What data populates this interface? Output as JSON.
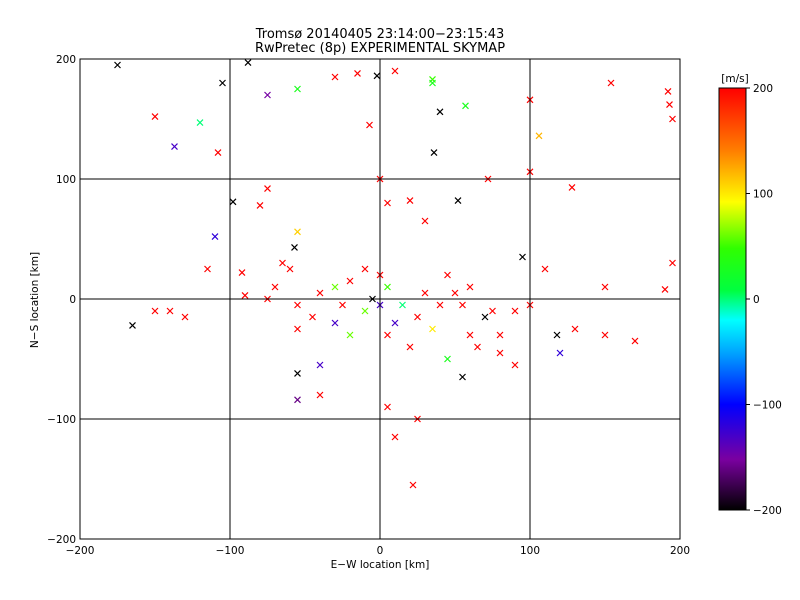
{
  "chart_data": {
    "type": "scatter",
    "title": "Tromsø 20140405 23:14:00−23:15:43",
    "subtitle": "RwPretec (8p) EXPERIMENTAL SKYMAP",
    "xlabel": "E−W location [km]",
    "ylabel": "N−S location [km]",
    "xlim": [
      -200,
      200
    ],
    "ylim": [
      -200,
      200
    ],
    "x_ticks": [
      "−200",
      "−100",
      "0",
      "100",
      "200"
    ],
    "y_ticks": [
      "−200",
      "−100",
      "0",
      "100",
      "200"
    ],
    "grid": true,
    "grid_lines": [
      -100,
      0,
      100
    ],
    "colorbar": {
      "label": "[m/s]",
      "range": [
        -200,
        200
      ],
      "ticks": [
        "−200",
        "−100",
        "0",
        "100",
        "200"
      ],
      "colormap": "rainbow (black-purple-blue-cyan-green-yellow-red)"
    },
    "marker_types": [
      "dot",
      "cross"
    ],
    "points_note": "Dense velocity scatter concentrated near the origin; points sampled/estimated from the image (x, y in km; v in m/s)",
    "points": [
      {
        "x": -175,
        "y": 195,
        "v": -200,
        "m": "x"
      },
      {
        "x": -105,
        "y": 180,
        "v": -200,
        "m": "x"
      },
      {
        "x": -88,
        "y": 197,
        "v": -200,
        "m": "x"
      },
      {
        "x": -75,
        "y": 170,
        "v": -150,
        "m": "x"
      },
      {
        "x": -55,
        "y": 175,
        "v": 30,
        "m": "x"
      },
      {
        "x": -30,
        "y": 185,
        "v": 200,
        "m": "x"
      },
      {
        "x": -15,
        "y": 188,
        "v": 200,
        "m": "x"
      },
      {
        "x": -2,
        "y": 186,
        "v": -200,
        "m": "x"
      },
      {
        "x": 10,
        "y": 190,
        "v": 200,
        "m": "x"
      },
      {
        "x": 35,
        "y": 183,
        "v": 50,
        "m": "x"
      },
      {
        "x": 35,
        "y": 180,
        "v": 30,
        "m": "x"
      },
      {
        "x": 57,
        "y": 161,
        "v": 30,
        "m": "x"
      },
      {
        "x": 40,
        "y": 156,
        "v": -200,
        "m": "x"
      },
      {
        "x": 100,
        "y": 166,
        "v": 200,
        "m": "x"
      },
      {
        "x": 154,
        "y": 180,
        "v": 200,
        "m": "x"
      },
      {
        "x": 192,
        "y": 173,
        "v": 200,
        "m": "x"
      },
      {
        "x": 193,
        "y": 162,
        "v": 200,
        "m": "x"
      },
      {
        "x": 195,
        "y": 150,
        "v": 200,
        "m": "x"
      },
      {
        "x": 106,
        "y": 136,
        "v": 120,
        "m": "x"
      },
      {
        "x": -150,
        "y": 152,
        "v": 200,
        "m": "x"
      },
      {
        "x": -120,
        "y": 147,
        "v": 0,
        "m": "x"
      },
      {
        "x": -137,
        "y": 127,
        "v": -130,
        "m": "x"
      },
      {
        "x": -108,
        "y": 122,
        "v": 200,
        "m": "x"
      },
      {
        "x": -7,
        "y": 145,
        "v": 200,
        "m": "x"
      },
      {
        "x": 36,
        "y": 122,
        "v": -200,
        "m": "x"
      },
      {
        "x": -98,
        "y": 81,
        "v": -200,
        "m": "x"
      },
      {
        "x": -75,
        "y": 92,
        "v": 200,
        "m": "x"
      },
      {
        "x": -80,
        "y": 78,
        "v": 200,
        "m": "x"
      },
      {
        "x": -110,
        "y": 52,
        "v": -120,
        "m": "x"
      },
      {
        "x": -55,
        "y": 56,
        "v": 110,
        "m": "x"
      },
      {
        "x": -57,
        "y": 43,
        "v": -200,
        "m": "x"
      },
      {
        "x": -65,
        "y": 30,
        "v": 200,
        "m": "x"
      },
      {
        "x": -60,
        "y": 25,
        "v": 200,
        "m": "x"
      },
      {
        "x": -115,
        "y": 25,
        "v": 200,
        "m": "x"
      },
      {
        "x": -92,
        "y": 22,
        "v": 200,
        "m": "x"
      },
      {
        "x": -70,
        "y": 10,
        "v": 200,
        "m": "x"
      },
      {
        "x": -75,
        "y": 0,
        "v": 200,
        "m": "x"
      },
      {
        "x": -90,
        "y": 3,
        "v": 200,
        "m": "x"
      },
      {
        "x": -40,
        "y": 5,
        "v": 200,
        "m": "x"
      },
      {
        "x": -30,
        "y": 10,
        "v": 60,
        "m": "x"
      },
      {
        "x": -25,
        "y": -5,
        "v": 200,
        "m": "x"
      },
      {
        "x": -45,
        "y": -15,
        "v": 200,
        "m": "x"
      },
      {
        "x": -55,
        "y": -5,
        "v": 200,
        "m": "x"
      },
      {
        "x": -150,
        "y": -10,
        "v": 200,
        "m": "x"
      },
      {
        "x": -140,
        "y": -10,
        "v": 200,
        "m": "x"
      },
      {
        "x": -130,
        "y": -15,
        "v": 200,
        "m": "x"
      },
      {
        "x": -165,
        "y": -22,
        "v": -200,
        "m": "x"
      },
      {
        "x": -30,
        "y": -20,
        "v": -130,
        "m": "x"
      },
      {
        "x": -55,
        "y": -25,
        "v": 200,
        "m": "x"
      },
      {
        "x": -20,
        "y": -30,
        "v": 60,
        "m": "x"
      },
      {
        "x": -55,
        "y": -62,
        "v": -200,
        "m": "x"
      },
      {
        "x": -40,
        "y": -55,
        "v": -130,
        "m": "x"
      },
      {
        "x": -55,
        "y": -84,
        "v": -160,
        "m": "x"
      },
      {
        "x": -40,
        "y": -80,
        "v": 200,
        "m": "x"
      },
      {
        "x": 0,
        "y": 100,
        "v": 200,
        "m": "x"
      },
      {
        "x": 5,
        "y": 80,
        "v": 200,
        "m": "x"
      },
      {
        "x": 30,
        "y": 65,
        "v": 200,
        "m": "x"
      },
      {
        "x": 52,
        "y": 82,
        "v": -200,
        "m": "x"
      },
      {
        "x": 20,
        "y": 82,
        "v": 200,
        "m": "x"
      },
      {
        "x": 72,
        "y": 100,
        "v": 200,
        "m": "x"
      },
      {
        "x": 100,
        "y": 106,
        "v": 200,
        "m": "x"
      },
      {
        "x": 128,
        "y": 93,
        "v": 200,
        "m": "x"
      },
      {
        "x": 95,
        "y": 35,
        "v": -200,
        "m": "x"
      },
      {
        "x": 110,
        "y": 25,
        "v": 200,
        "m": "x"
      },
      {
        "x": 190,
        "y": 8,
        "v": 200,
        "m": "x"
      },
      {
        "x": 195,
        "y": 30,
        "v": 200,
        "m": "x"
      },
      {
        "x": 150,
        "y": 10,
        "v": 200,
        "m": "x"
      },
      {
        "x": 100,
        "y": -5,
        "v": 200,
        "m": "x"
      },
      {
        "x": 90,
        "y": -10,
        "v": 200,
        "m": "x"
      },
      {
        "x": 75,
        "y": -10,
        "v": 200,
        "m": "x"
      },
      {
        "x": 70,
        "y": -15,
        "v": -200,
        "m": "x"
      },
      {
        "x": 120,
        "y": -45,
        "v": -120,
        "m": "x"
      },
      {
        "x": 118,
        "y": -30,
        "v": -200,
        "m": "x"
      },
      {
        "x": 130,
        "y": -25,
        "v": 200,
        "m": "x"
      },
      {
        "x": 170,
        "y": -35,
        "v": 200,
        "m": "x"
      },
      {
        "x": 150,
        "y": -30,
        "v": 200,
        "m": "x"
      },
      {
        "x": 55,
        "y": -65,
        "v": -200,
        "m": "x"
      },
      {
        "x": 45,
        "y": -50,
        "v": 30,
        "m": "x"
      },
      {
        "x": 90,
        "y": -55,
        "v": 200,
        "m": "x"
      },
      {
        "x": 80,
        "y": -45,
        "v": 200,
        "m": "x"
      },
      {
        "x": 65,
        "y": -40,
        "v": 200,
        "m": "x"
      },
      {
        "x": 5,
        "y": -30,
        "v": 200,
        "m": "x"
      },
      {
        "x": 10,
        "y": -20,
        "v": -130,
        "m": "x"
      },
      {
        "x": 25,
        "y": -15,
        "v": 200,
        "m": "x"
      },
      {
        "x": 35,
        "y": -25,
        "v": 100,
        "m": "x"
      },
      {
        "x": 20,
        "y": -40,
        "v": 200,
        "m": "x"
      },
      {
        "x": 5,
        "y": -90,
        "v": 200,
        "m": "x"
      },
      {
        "x": 10,
        "y": -115,
        "v": 200,
        "m": "x"
      },
      {
        "x": 25,
        "y": -100,
        "v": 200,
        "m": "x"
      },
      {
        "x": 22,
        "y": -155,
        "v": 200,
        "m": "x"
      },
      {
        "x": 0,
        "y": 20,
        "v": 200,
        "m": "x"
      },
      {
        "x": 5,
        "y": 10,
        "v": 50,
        "m": "x"
      },
      {
        "x": -5,
        "y": 0,
        "v": -200,
        "m": "x"
      },
      {
        "x": 0,
        "y": -5,
        "v": -130,
        "m": "x"
      },
      {
        "x": 15,
        "y": -5,
        "v": 0,
        "m": "x"
      },
      {
        "x": 30,
        "y": 5,
        "v": 200,
        "m": "x"
      },
      {
        "x": 45,
        "y": 20,
        "v": 200,
        "m": "x"
      },
      {
        "x": 60,
        "y": 10,
        "v": 200,
        "m": "x"
      },
      {
        "x": 50,
        "y": 5,
        "v": 200,
        "m": "x"
      },
      {
        "x": -10,
        "y": 25,
        "v": 200,
        "m": "x"
      },
      {
        "x": -20,
        "y": 15,
        "v": 200,
        "m": "x"
      },
      {
        "x": -10,
        "y": -10,
        "v": 60,
        "m": "x"
      },
      {
        "x": 55,
        "y": -5,
        "v": 200,
        "m": "x"
      },
      {
        "x": 40,
        "y": -5,
        "v": 200,
        "m": "x"
      },
      {
        "x": 80,
        "y": -30,
        "v": 200,
        "m": "x"
      },
      {
        "x": 60,
        "y": -30,
        "v": 200,
        "m": "x"
      }
    ]
  }
}
